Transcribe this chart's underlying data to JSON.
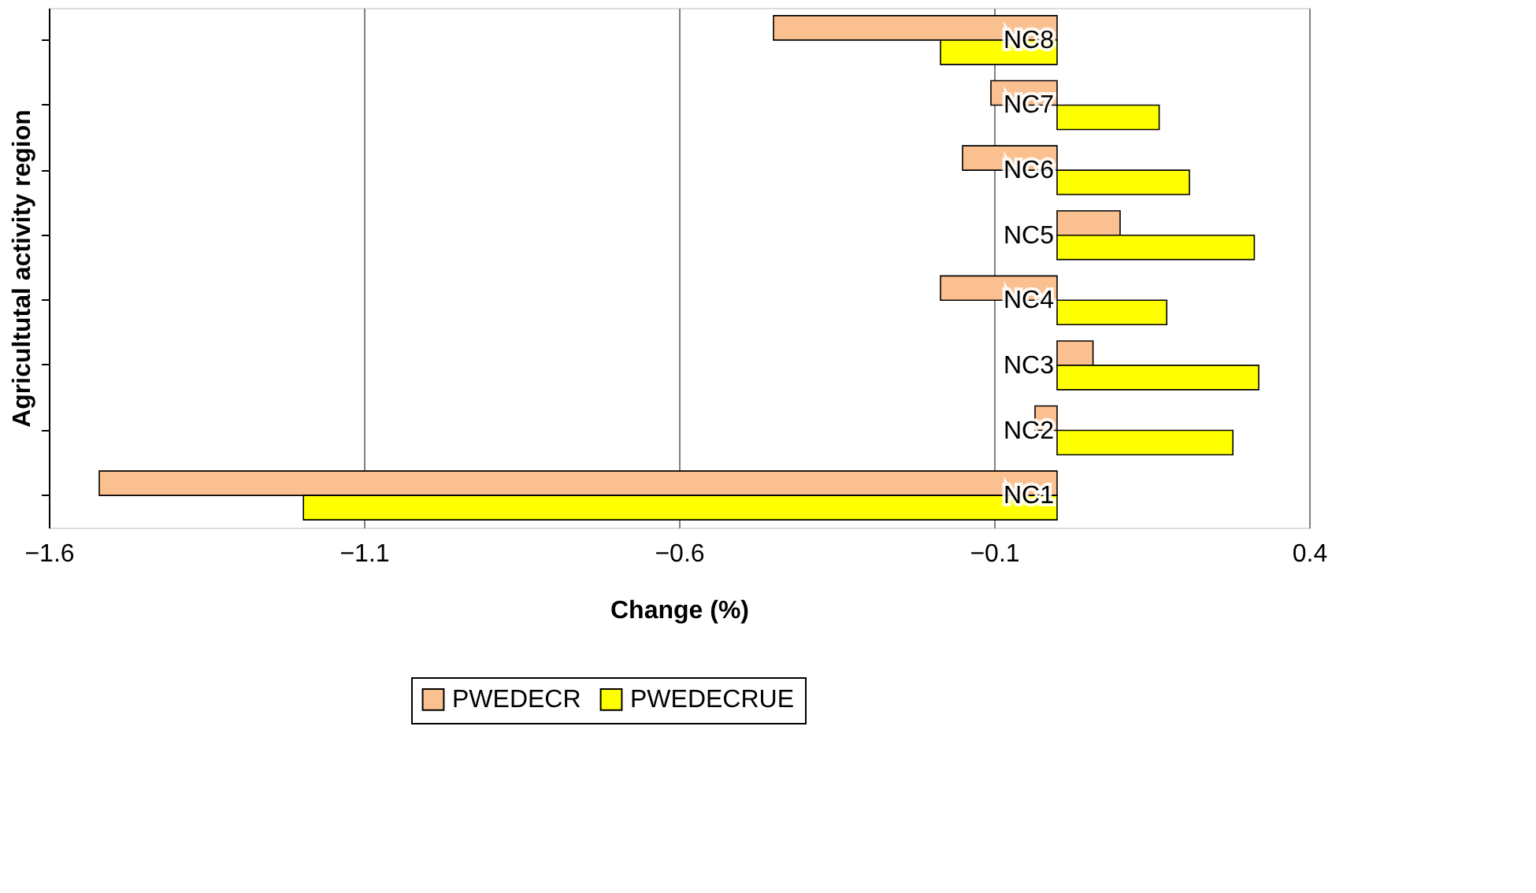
{
  "chart_data": {
    "type": "bar",
    "orientation": "horizontal",
    "xlabel": "Change (%)",
    "ylabel": "Agricultutal activity region",
    "categories": [
      "NC8",
      "NC7",
      "NC6",
      "NC5",
      "NC4",
      "NC3",
      "NC2",
      "NC1"
    ],
    "series": [
      {
        "name": "PWEDECR",
        "color": "#fac090",
        "values": [
          -0.45,
          -0.105,
          -0.15,
          0.1,
          -0.185,
          0.057,
          -0.035,
          -1.52
        ]
      },
      {
        "name": "PWEDECRUE",
        "color": "#ffff00",
        "values": [
          -0.185,
          0.162,
          0.21,
          0.313,
          0.174,
          0.32,
          0.279,
          -1.196
        ]
      }
    ],
    "xlim": [
      -1.6,
      0.4
    ],
    "xticks": [
      -1.6,
      -1.1,
      -0.6,
      -0.1,
      0.4
    ],
    "grid": "x",
    "legend": "bottom"
  }
}
